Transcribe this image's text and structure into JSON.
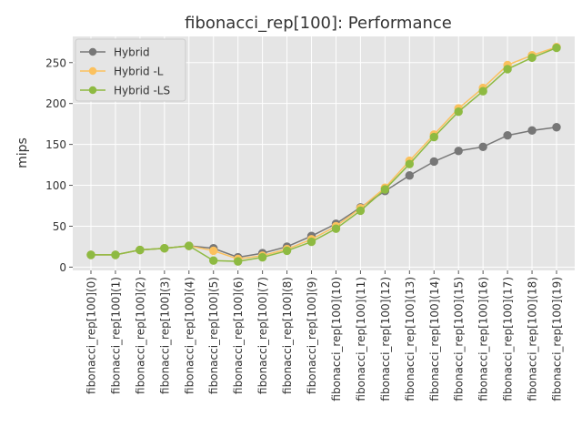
{
  "chart_data": {
    "type": "line",
    "title": "fibonacci_rep[100]: Performance",
    "xlabel": "",
    "ylabel": "mips",
    "ylim": [
      -4,
      282
    ],
    "yticks": [
      0,
      50,
      100,
      150,
      200,
      250
    ],
    "grid": true,
    "legend_position": "top-left",
    "categories": [
      "fibonacci_rep[100](0)",
      "fibonacci_rep[100](1)",
      "fibonacci_rep[100](2)",
      "fibonacci_rep[100](3)",
      "fibonacci_rep[100](4)",
      "fibonacci_rep[100](5)",
      "fibonacci_rep[100](6)",
      "fibonacci_rep[100](7)",
      "fibonacci_rep[100](8)",
      "fibonacci_rep[100](9)",
      "fibonacci_rep[100](10)",
      "fibonacci_rep[100](11)",
      "fibonacci_rep[100](12)",
      "fibonacci_rep[100](13)",
      "fibonacci_rep[100](14)",
      "fibonacci_rep[100](15)",
      "fibonacci_rep[100](16)",
      "fibonacci_rep[100](17)",
      "fibonacci_rep[100](18)",
      "fibonacci_rep[100](19)"
    ],
    "series": [
      {
        "name": "Hybrid",
        "color": "#777777",
        "values": [
          15,
          15,
          21,
          23,
          26,
          23,
          12,
          17,
          25,
          38,
          53,
          73,
          93,
          112,
          129,
          142,
          147,
          161,
          167,
          171
        ]
      },
      {
        "name": "Hybrid -L",
        "color": "#fbc15e",
        "values": [
          15,
          15,
          21,
          23,
          26,
          20,
          10,
          14,
          22,
          34,
          50,
          72,
          97,
          130,
          162,
          194,
          219,
          247,
          259,
          269
        ]
      },
      {
        "name": "Hybrid -LS",
        "color": "#8eba42",
        "values": [
          15,
          15,
          21,
          23,
          26,
          8,
          7,
          12,
          20,
          31,
          47,
          69,
          95,
          126,
          159,
          190,
          215,
          242,
          256,
          268
        ]
      }
    ]
  }
}
